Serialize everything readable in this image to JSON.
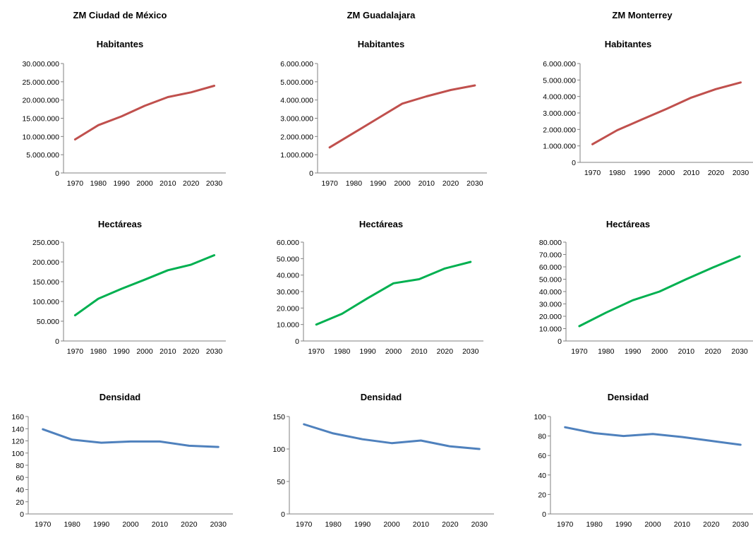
{
  "columns": [
    {
      "title": "ZM Ciudad de México"
    },
    {
      "title": "ZM Guadalajara"
    },
    {
      "title": "ZM Monterrey"
    }
  ],
  "chart_data": [
    {
      "id": "cdmx-hab",
      "type": "line",
      "title": "Habitantes",
      "color": "#c0504d",
      "x": [
        1970,
        1980,
        1990,
        2000,
        2010,
        2020,
        2030
      ],
      "series": [
        {
          "values": [
            9200000,
            13100000,
            15500000,
            18400000,
            20800000,
            22100000,
            23900000
          ]
        }
      ],
      "ylim": [
        0,
        30000000
      ],
      "yticks": [
        {
          "v": 0,
          "label": "0"
        },
        {
          "v": 5000000,
          "label": "5.000.000"
        },
        {
          "v": 10000000,
          "label": "10.000.000"
        },
        {
          "v": 15000000,
          "label": "15.000.000"
        },
        {
          "v": 20000000,
          "label": "20.000.000"
        },
        {
          "v": 25000000,
          "label": "25.000.000"
        },
        {
          "v": 30000000,
          "label": "30.000.000"
        }
      ],
      "xticks": [
        "1970",
        "1980",
        "1990",
        "2000",
        "2010",
        "2020",
        "2030"
      ]
    },
    {
      "id": "gdl-hab",
      "type": "line",
      "title": "Habitantes",
      "color": "#c0504d",
      "x": [
        1970,
        1980,
        1990,
        2000,
        2010,
        2020,
        2030
      ],
      "series": [
        {
          "values": [
            1400000,
            2200000,
            3000000,
            3800000,
            4200000,
            4550000,
            4800000
          ]
        }
      ],
      "ylim": [
        0,
        6000000
      ],
      "yticks": [
        {
          "v": 0,
          "label": "0"
        },
        {
          "v": 1000000,
          "label": "1.000.000"
        },
        {
          "v": 2000000,
          "label": "2.000.000"
        },
        {
          "v": 3000000,
          "label": "3.000.000"
        },
        {
          "v": 4000000,
          "label": "4.000.000"
        },
        {
          "v": 5000000,
          "label": "5.000.000"
        },
        {
          "v": 6000000,
          "label": "6.000.000"
        }
      ],
      "xticks": [
        "1970",
        "1980",
        "1990",
        "2000",
        "2010",
        "2020",
        "2030"
      ]
    },
    {
      "id": "mty-hab",
      "type": "line",
      "title": "Habitantes",
      "color": "#c0504d",
      "x": [
        1970,
        1980,
        1990,
        2000,
        2010,
        2020,
        2030
      ],
      "series": [
        {
          "values": [
            1100000,
            1950000,
            2600000,
            3250000,
            3930000,
            4450000,
            4850000
          ]
        }
      ],
      "ylim": [
        0,
        6000000
      ],
      "yticks": [
        {
          "v": 0,
          "label": "0"
        },
        {
          "v": 1000000,
          "label": "1.000.000"
        },
        {
          "v": 2000000,
          "label": "2.000.000"
        },
        {
          "v": 3000000,
          "label": "3.000.000"
        },
        {
          "v": 4000000,
          "label": "4.000.000"
        },
        {
          "v": 5000000,
          "label": "5.000.000"
        },
        {
          "v": 6000000,
          "label": "6.000.000"
        }
      ],
      "xticks": [
        "1970",
        "1980",
        "1990",
        "2000",
        "2010",
        "2020",
        "2030"
      ]
    },
    {
      "id": "cdmx-hec",
      "type": "line",
      "title": "Hectáreas",
      "color": "#00b050",
      "x": [
        1970,
        1980,
        1990,
        2000,
        2010,
        2020,
        2030
      ],
      "series": [
        {
          "values": [
            65000,
            107000,
            132000,
            155000,
            179000,
            193000,
            217000
          ]
        }
      ],
      "ylim": [
        0,
        250000
      ],
      "yticks": [
        {
          "v": 0,
          "label": "0"
        },
        {
          "v": 50000,
          "label": "50.000"
        },
        {
          "v": 100000,
          "label": "100.000"
        },
        {
          "v": 150000,
          "label": "150.000"
        },
        {
          "v": 200000,
          "label": "200.000"
        },
        {
          "v": 250000,
          "label": "250.000"
        }
      ],
      "xticks": [
        "1970",
        "1980",
        "1990",
        "2000",
        "2010",
        "2020",
        "2030"
      ]
    },
    {
      "id": "gdl-hec",
      "type": "line",
      "title": "Hectáreas",
      "color": "#00b050",
      "x": [
        1970,
        1980,
        1990,
        2000,
        2010,
        2020,
        2030
      ],
      "series": [
        {
          "values": [
            10000,
            16500,
            26000,
            35000,
            37500,
            44000,
            48000
          ]
        }
      ],
      "ylim": [
        0,
        60000
      ],
      "yticks": [
        {
          "v": 0,
          "label": "0"
        },
        {
          "v": 10000,
          "label": "10.000"
        },
        {
          "v": 20000,
          "label": "20.000"
        },
        {
          "v": 30000,
          "label": "30.000"
        },
        {
          "v": 40000,
          "label": "40.000"
        },
        {
          "v": 50000,
          "label": "50.000"
        },
        {
          "v": 60000,
          "label": "60.000"
        }
      ],
      "xticks": [
        "1970",
        "1980",
        "1990",
        "2000",
        "2010",
        "2020",
        "2030"
      ]
    },
    {
      "id": "mty-hec",
      "type": "line",
      "title": "Hectáreas",
      "color": "#00b050",
      "x": [
        1970,
        1980,
        1990,
        2000,
        2010,
        2020,
        2030
      ],
      "series": [
        {
          "values": [
            12000,
            23000,
            33000,
            40000,
            50000,
            59500,
            68500
          ]
        }
      ],
      "ylim": [
        0,
        80000
      ],
      "yticks": [
        {
          "v": 0,
          "label": "0"
        },
        {
          "v": 10000,
          "label": "10.000"
        },
        {
          "v": 20000,
          "label": "20.000"
        },
        {
          "v": 30000,
          "label": "30.000"
        },
        {
          "v": 40000,
          "label": "40.000"
        },
        {
          "v": 50000,
          "label": "50.000"
        },
        {
          "v": 60000,
          "label": "60.000"
        },
        {
          "v": 70000,
          "label": "70.000"
        },
        {
          "v": 80000,
          "label": "80.000"
        }
      ],
      "xticks": [
        "1970",
        "1980",
        "1990",
        "2000",
        "2010",
        "2020",
        "2030"
      ]
    },
    {
      "id": "cdmx-den",
      "type": "line",
      "title": "Densidad",
      "color": "#4f81bd",
      "x": [
        1970,
        1980,
        1990,
        2000,
        2010,
        2020,
        2030
      ],
      "series": [
        {
          "values": [
            139,
            122,
            117,
            119,
            119,
            112,
            110
          ]
        }
      ],
      "ylim": [
        0,
        160
      ],
      "yticks": [
        {
          "v": 0,
          "label": "0"
        },
        {
          "v": 20,
          "label": "20"
        },
        {
          "v": 40,
          "label": "40"
        },
        {
          "v": 60,
          "label": "60"
        },
        {
          "v": 80,
          "label": "80"
        },
        {
          "v": 100,
          "label": "100"
        },
        {
          "v": 120,
          "label": "120"
        },
        {
          "v": 140,
          "label": "140"
        },
        {
          "v": 160,
          "label": "160"
        }
      ],
      "xticks": [
        "1970",
        "1980",
        "1990",
        "2000",
        "2010",
        "2020",
        "2030"
      ]
    },
    {
      "id": "gdl-den",
      "type": "line",
      "title": "Densidad",
      "color": "#4f81bd",
      "x": [
        1970,
        1980,
        1990,
        2000,
        2010,
        2020,
        2030
      ],
      "series": [
        {
          "values": [
            138,
            124,
            115,
            109,
            113,
            104,
            100
          ]
        }
      ],
      "ylim": [
        0,
        150
      ],
      "yticks": [
        {
          "v": 0,
          "label": "0"
        },
        {
          "v": 50,
          "label": "50"
        },
        {
          "v": 100,
          "label": "100"
        },
        {
          "v": 150,
          "label": "150"
        }
      ],
      "xticks": [
        "1970",
        "1980",
        "1990",
        "2000",
        "2010",
        "2020",
        "2030"
      ]
    },
    {
      "id": "mty-den",
      "type": "line",
      "title": "Densidad",
      "color": "#4f81bd",
      "x": [
        1970,
        1980,
        1990,
        2000,
        2010,
        2020,
        2030
      ],
      "series": [
        {
          "values": [
            89,
            83,
            80,
            82,
            79,
            75,
            71
          ]
        }
      ],
      "ylim": [
        0,
        100
      ],
      "yticks": [
        {
          "v": 0,
          "label": "0"
        },
        {
          "v": 20,
          "label": "20"
        },
        {
          "v": 40,
          "label": "40"
        },
        {
          "v": 60,
          "label": "60"
        },
        {
          "v": 80,
          "label": "80"
        },
        {
          "v": 100,
          "label": "100"
        }
      ],
      "xticks": [
        "1970",
        "1980",
        "1990",
        "2000",
        "2010",
        "2020",
        "2030"
      ]
    }
  ]
}
